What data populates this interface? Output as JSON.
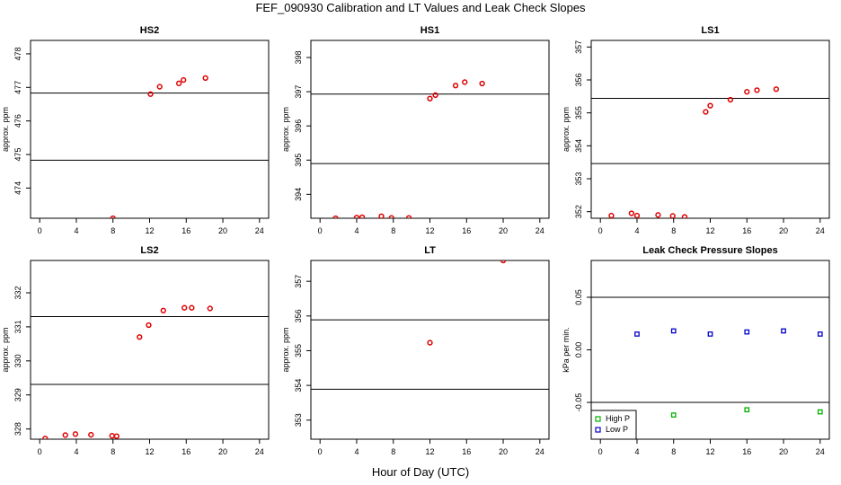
{
  "title": "FEF_090930  Calibration and LT Values and Leak Check Slopes",
  "x_axis_title": "Hour of Day (UTC)",
  "colors": {
    "calibration_points": "#e00000",
    "high_p": "#00b000",
    "low_p": "#0000cc",
    "frame": "#000000"
  },
  "chart_data": [
    {
      "type": "scatter",
      "title": "HS2",
      "ylabel": "approx. ppm",
      "xlim": [
        -1,
        25
      ],
      "ylim": [
        473.1,
        478.4
      ],
      "xticks": [
        0,
        4,
        8,
        12,
        16,
        20,
        24
      ],
      "yticks": [
        474,
        475,
        476,
        477,
        478
      ],
      "hlines": [
        476.83,
        474.83
      ],
      "series": [
        {
          "x": [
            8.0,
            12.1,
            13.1,
            15.2,
            15.7,
            18.1
          ],
          "y": [
            473.1,
            476.8,
            477.02,
            477.12,
            477.22,
            477.28
          ]
        }
      ]
    },
    {
      "type": "scatter",
      "title": "HS1",
      "ylabel": "approx. ppm",
      "xlim": [
        -1,
        25
      ],
      "ylim": [
        393.3,
        398.5
      ],
      "xticks": [
        0,
        4,
        8,
        12,
        16,
        20,
        24
      ],
      "yticks": [
        394,
        395,
        396,
        397,
        398
      ],
      "hlines": [
        396.93,
        394.9
      ],
      "series": [
        {
          "x": [
            1.7,
            4.0,
            4.6,
            6.7,
            7.8,
            9.7,
            12.0,
            12.6,
            14.8,
            15.8,
            17.7
          ],
          "y": [
            393.3,
            393.32,
            393.33,
            393.36,
            393.31,
            393.31,
            396.8,
            396.9,
            397.18,
            397.28,
            397.24
          ]
        }
      ]
    },
    {
      "type": "scatter",
      "title": "LS1",
      "ylabel": "approx. ppm",
      "xlim": [
        -1,
        25
      ],
      "ylim": [
        351.8,
        357.2
      ],
      "xticks": [
        0,
        4,
        8,
        12,
        16,
        20,
        24
      ],
      "yticks": [
        352,
        353,
        354,
        355,
        356,
        357
      ],
      "hlines": [
        355.44,
        353.46
      ],
      "series": [
        {
          "x": [
            1.2,
            3.4,
            4.0,
            6.3,
            7.9,
            9.2,
            11.5,
            12.0,
            14.2,
            16.0,
            17.1,
            19.2
          ],
          "y": [
            351.88,
            351.95,
            351.88,
            351.9,
            351.87,
            351.84,
            355.03,
            355.22,
            355.4,
            355.64,
            355.69,
            355.72
          ]
        }
      ]
    },
    {
      "type": "scatter",
      "title": "LS2",
      "ylabel": "approx. ppm",
      "xlim": [
        -1,
        25
      ],
      "ylim": [
        327.7,
        332.95
      ],
      "xticks": [
        0,
        4,
        8,
        12,
        16,
        20,
        24
      ],
      "yticks": [
        328,
        329,
        330,
        331,
        332
      ],
      "hlines": [
        331.3,
        329.31
      ],
      "series": [
        {
          "x": [
            0.6,
            2.8,
            3.9,
            5.6,
            7.9,
            8.4,
            10.9,
            11.9,
            13.5,
            15.8,
            16.6,
            18.6
          ],
          "y": [
            327.72,
            327.82,
            327.85,
            327.83,
            327.8,
            327.79,
            330.7,
            331.05,
            331.48,
            331.56,
            331.56,
            331.54
          ]
        }
      ]
    },
    {
      "type": "scatter",
      "title": "LT",
      "ylabel": "approx. ppm",
      "xlim": [
        -1,
        25
      ],
      "ylim": [
        352.45,
        357.6
      ],
      "xticks": [
        0,
        4,
        8,
        12,
        16,
        20,
        24
      ],
      "yticks": [
        353,
        354,
        355,
        356,
        357
      ],
      "hlines": [
        355.89,
        353.89
      ],
      "series": [
        {
          "x": [
            12.0,
            20.0
          ],
          "y": [
            355.23,
            357.6
          ]
        }
      ]
    },
    {
      "type": "scatter",
      "title": "Leak Check Pressure Slopes",
      "ylabel": "kPa per min.",
      "xlim": [
        -1,
        25
      ],
      "ylim": [
        -0.085,
        0.085
      ],
      "xticks": [
        0,
        4,
        8,
        12,
        16,
        20,
        24
      ],
      "yticks": [
        -0.05,
        0.0,
        0.05
      ],
      "ytick_labels": [
        "-0.05",
        "0.00",
        "0.05"
      ],
      "hlines": [
        0.05,
        -0.05
      ],
      "legend": "bottom-left",
      "series": [
        {
          "name": "High P",
          "color": "#00b000",
          "x": [
            8,
            16,
            24
          ],
          "y": [
            -0.062,
            -0.057,
            -0.059
          ]
        },
        {
          "name": "Low P",
          "color": "#0000cc",
          "x": [
            4,
            8,
            12,
            16,
            20,
            24
          ],
          "y": [
            0.015,
            0.018,
            0.015,
            0.017,
            0.018,
            0.015
          ]
        }
      ]
    }
  ]
}
